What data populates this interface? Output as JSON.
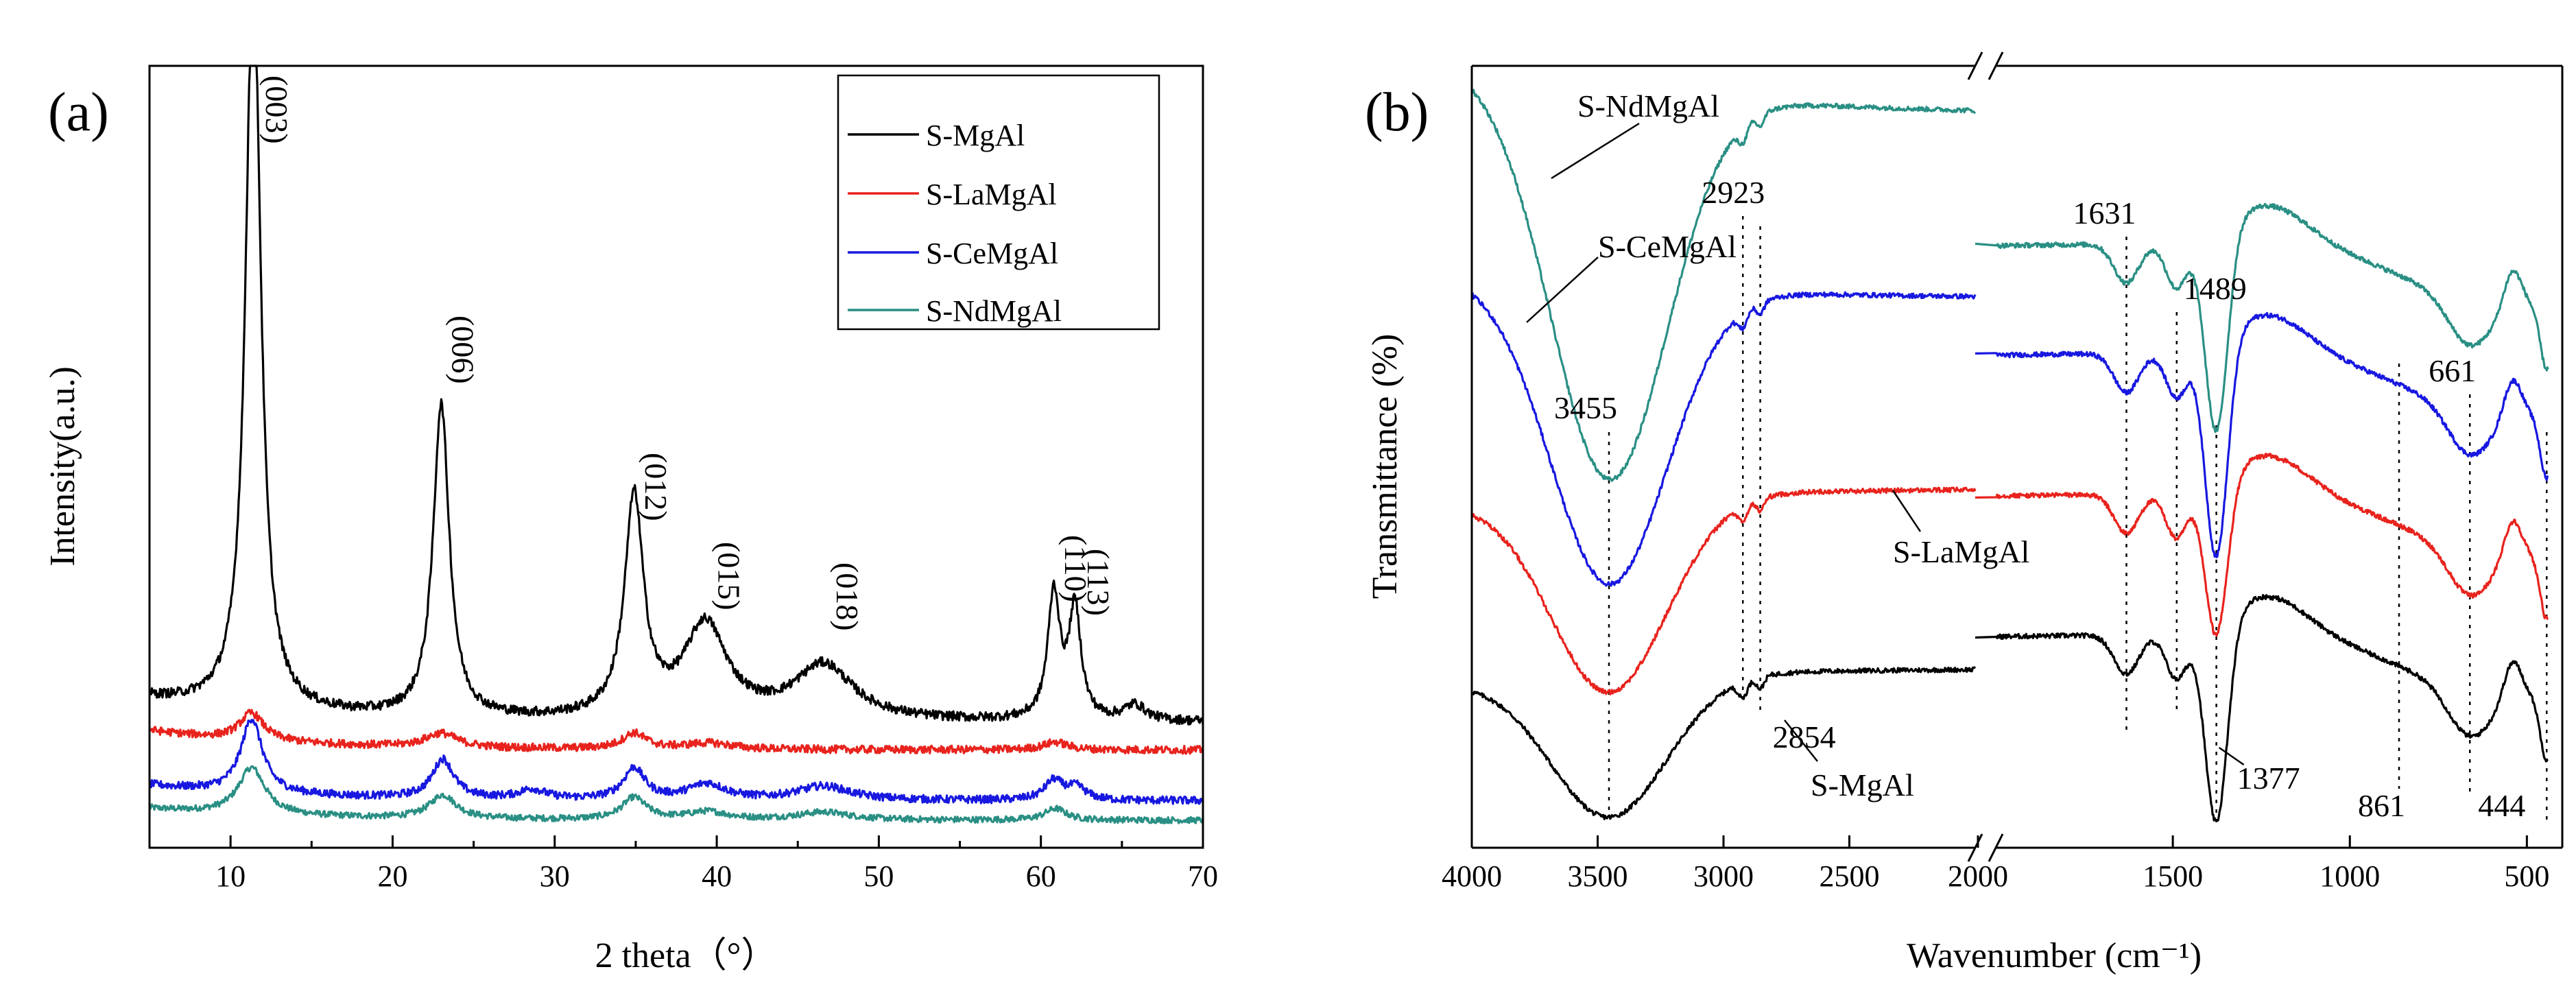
{
  "figure": {
    "colors": {
      "S-MgAl": "#000000",
      "S-LaMgAl": "#e8231d",
      "S-CeMgAl": "#1818e0",
      "S-NdMgAl": "#2a8f84"
    }
  },
  "chart_data": [
    {
      "id": "a",
      "panel_label": "(a)",
      "type": "line",
      "title": "",
      "xlabel": "2 theta（°）",
      "ylabel": "Intensity(a.u.)",
      "xlim": [
        5,
        70
      ],
      "xticks": [
        "10",
        "20",
        "30",
        "40",
        "50",
        "60",
        "70"
      ],
      "legend_position": "top-right",
      "legend": [
        "S-MgAl",
        "S-LaMgAl",
        "S-CeMgAl",
        "S-NdMgAl"
      ],
      "peak_labels": [
        {
          "text": "(003)",
          "x": 11.6
        },
        {
          "text": "(006)",
          "x": 23.1
        },
        {
          "text": "(012)",
          "x": 35.0
        },
        {
          "text": "(015)",
          "x": 39.5
        },
        {
          "text": "(018)",
          "x": 46.8
        },
        {
          "text": "(110)",
          "x": 60.9
        },
        {
          "text": "(113)",
          "x": 62.3
        }
      ],
      "series": [
        {
          "name": "S-MgAl",
          "baseline": 0.16,
          "noise": 0.006,
          "tilt": 0.03,
          "peaks": [
            [
              11.4,
              0.97,
              0.55
            ],
            [
              23.0,
              0.4,
              0.6
            ],
            [
              34.9,
              0.28,
              0.7
            ],
            [
              39.3,
              0.12,
              1.6
            ],
            [
              46.6,
              0.07,
              2.2
            ],
            [
              60.8,
              0.16,
              0.45
            ],
            [
              62.1,
              0.14,
              0.45
            ],
            [
              65.8,
              0.02,
              0.8
            ]
          ]
        },
        {
          "name": "S-LaMgAl",
          "baseline": 0.125,
          "noise": 0.005,
          "tilt": 0.025,
          "peaks": [
            [
              11.3,
              0.035,
              0.9
            ],
            [
              23.0,
              0.018,
              1.2
            ],
            [
              34.9,
              0.02,
              0.9
            ],
            [
              39.5,
              0.008,
              1.8
            ],
            [
              60.9,
              0.01,
              0.9
            ]
          ]
        },
        {
          "name": "S-CeMgAl",
          "baseline": 0.06,
          "noise": 0.005,
          "tilt": 0.02,
          "peaks": [
            [
              11.3,
              0.095,
              0.8
            ],
            [
              23.1,
              0.05,
              0.8
            ],
            [
              28.6,
              0.012,
              1.0
            ],
            [
              34.9,
              0.04,
              0.8
            ],
            [
              39.4,
              0.02,
              1.4
            ],
            [
              46.6,
              0.018,
              2.0
            ],
            [
              60.8,
              0.025,
              0.7
            ],
            [
              62.2,
              0.016,
              0.7
            ]
          ]
        },
        {
          "name": "S-NdMgAl",
          "baseline": 0.035,
          "noise": 0.004,
          "tilt": 0.015,
          "peaks": [
            [
              11.3,
              0.06,
              1.0
            ],
            [
              23.1,
              0.03,
              1.0
            ],
            [
              34.9,
              0.028,
              0.9
            ],
            [
              39.4,
              0.01,
              1.5
            ],
            [
              46.6,
              0.01,
              2.0
            ],
            [
              60.9,
              0.015,
              0.8
            ]
          ]
        }
      ]
    },
    {
      "id": "b",
      "panel_label": "(b)",
      "type": "line",
      "title": "",
      "xlabel": "Wavenumber (cm⁻¹)",
      "ylabel": "Transmittance (%)",
      "x_segments": [
        [
          4000,
          2000
        ],
        [
          2000,
          400
        ]
      ],
      "xticks": [
        "4000",
        "3500",
        "3000",
        "2500",
        "2000",
        "1500",
        "1000",
        "500"
      ],
      "annotations": [
        {
          "text": "3455",
          "x": 3455
        },
        {
          "text": "2923",
          "x": 2923
        },
        {
          "text": "2854",
          "x": 2854
        },
        {
          "text": "1631",
          "x": 1631
        },
        {
          "text": "1489",
          "x": 1489
        },
        {
          "text": "1377",
          "x": 1377
        },
        {
          "text": "861",
          "x": 861
        },
        {
          "text": "661",
          "x": 661
        },
        {
          "text": "444",
          "x": 444
        }
      ],
      "series_labels": [
        "S-NdMgAl",
        "S-CeMgAl",
        "S-LaMgAl",
        "S-MgAl"
      ],
      "series": [
        {
          "name": "S-MgAl",
          "start": 0.21,
          "broad_depth": 0.18,
          "plateau": 0.26,
          "region2_base": 0.27,
          "carb_depth": 0.26
        },
        {
          "name": "S-LaMgAl",
          "start": 0.44,
          "broad_depth": 0.25,
          "plateau": 0.49,
          "region2_base": 0.45,
          "carb_depth": 0.2
        },
        {
          "name": "S-CeMgAl",
          "start": 0.73,
          "broad_depth": 0.38,
          "plateau": 0.66,
          "region2_base": 0.63,
          "carb_depth": 0.28
        },
        {
          "name": "S-NdMgAl",
          "start": 1.0,
          "broad_depth": 0.5,
          "plateau": 0.84,
          "region2_base": 0.77,
          "carb_depth": 0.26
        }
      ]
    }
  ]
}
